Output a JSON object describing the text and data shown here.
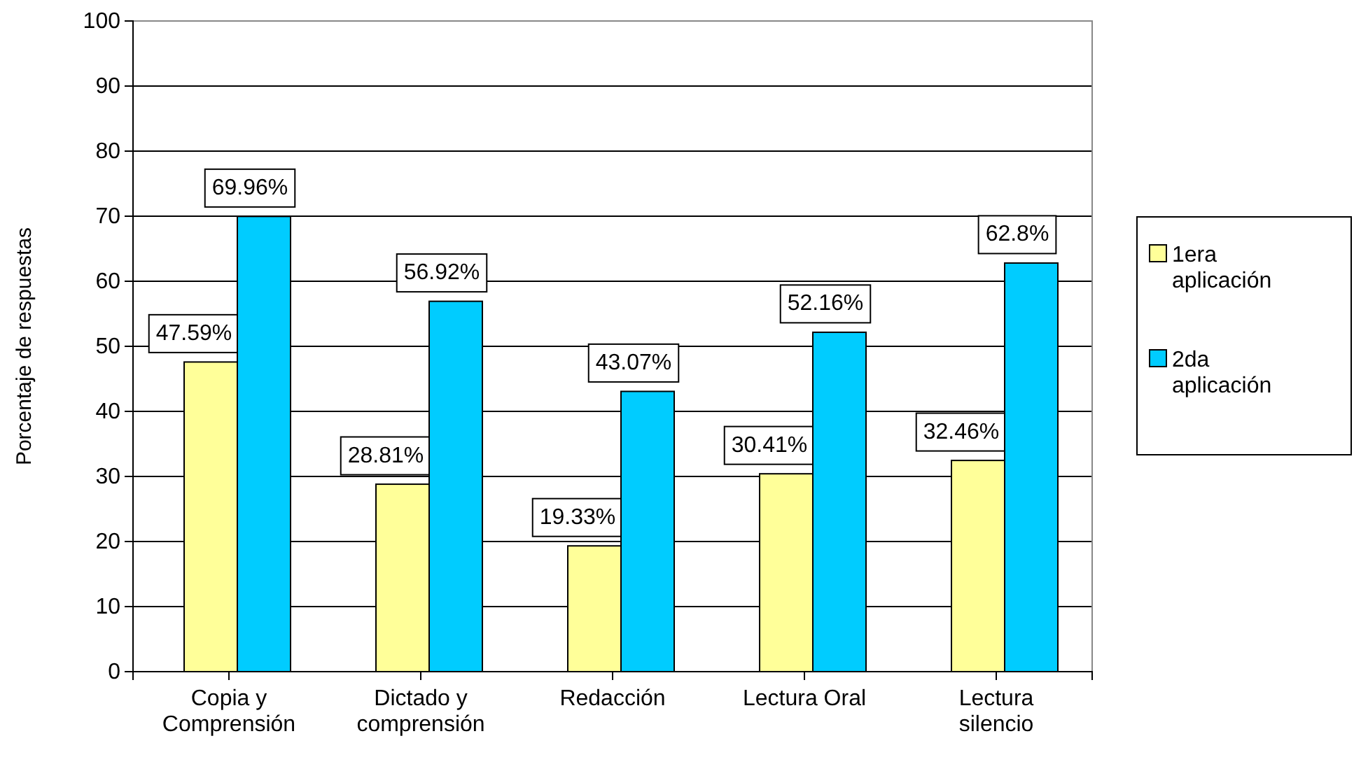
{
  "chart_data": {
    "type": "bar",
    "ylabel": "Porcentaje de respuestas",
    "categories": [
      "Copia y Comprensión",
      "Dictado y comprensión",
      "Redacción",
      "Lectura Oral",
      "Lectura silencio"
    ],
    "series": [
      {
        "name": "1era aplicación",
        "color": "#ffff99",
        "values": [
          47.59,
          28.81,
          19.33,
          30.41,
          32.46
        ],
        "value_labels": [
          "47.59%",
          "28.81%",
          "19.33%",
          "30.41%",
          "32.46%"
        ]
      },
      {
        "name": "2da aplicación",
        "color": "#00ccff",
        "values": [
          69.96,
          56.92,
          43.07,
          52.16,
          62.8
        ],
        "value_labels": [
          "69.96%",
          "56.92%",
          "43.07%",
          "52.16%",
          "62.8%"
        ]
      }
    ],
    "ylim": [
      0,
      100
    ],
    "yticks": [
      0,
      10,
      20,
      30,
      40,
      50,
      60,
      70,
      80,
      90,
      100
    ],
    "grid": "y",
    "legend": "right"
  }
}
